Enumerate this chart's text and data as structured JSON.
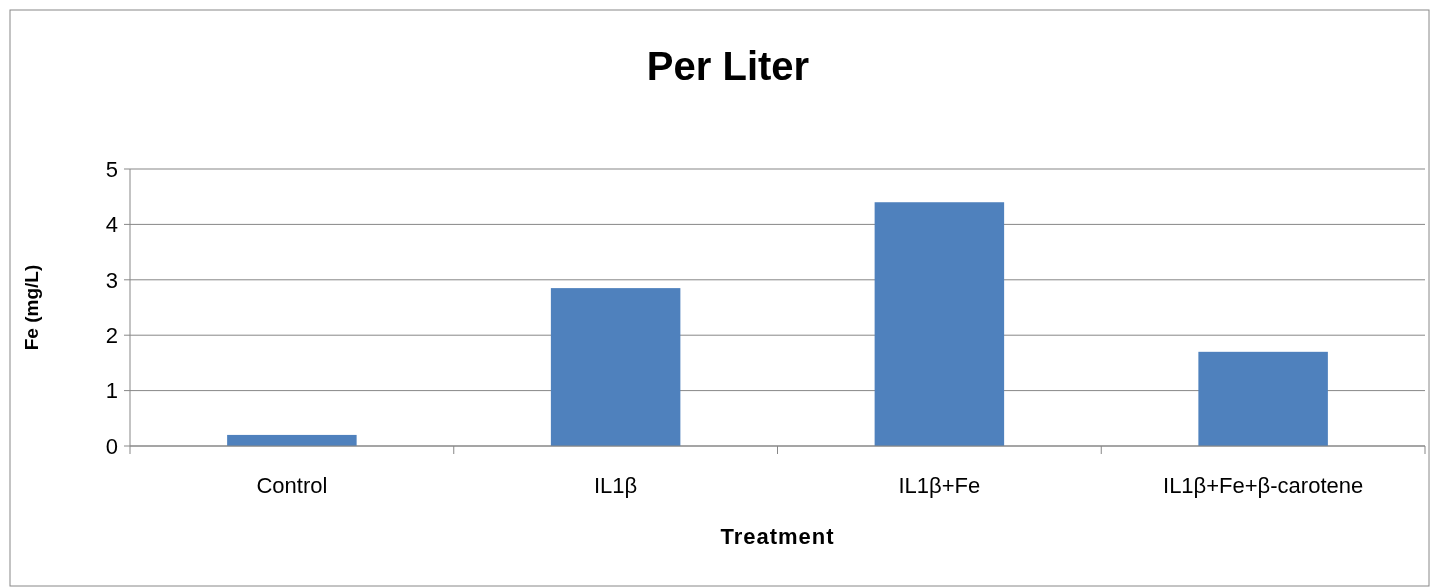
{
  "chart_data": {
    "type": "bar",
    "title": "Per Liter",
    "xlabel": "Treatment",
    "ylabel": "Fe (mg/L)",
    "categories": [
      "Control",
      "IL1β",
      "IL1β+Fe",
      "IL1β+Fe+β-carotene"
    ],
    "values": [
      0.2,
      2.85,
      4.4,
      1.7
    ],
    "color": "#4f81bd",
    "ylim": [
      0,
      5
    ],
    "yticks": [
      0,
      1,
      2,
      3,
      4,
      5
    ],
    "grid": "y"
  }
}
